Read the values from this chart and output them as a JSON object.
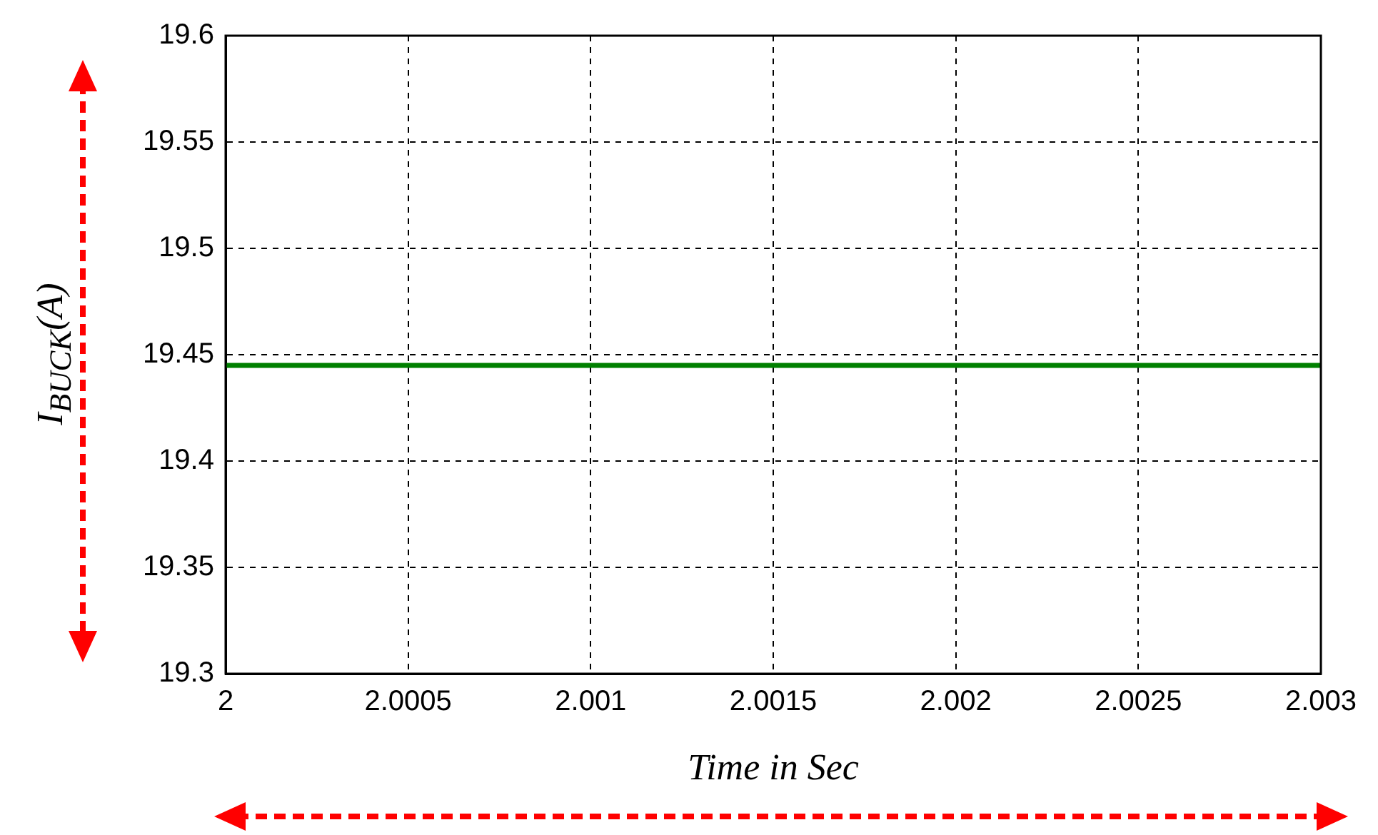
{
  "chart_data": {
    "type": "line",
    "xlabel": "Time in Sec",
    "ylabel": "I$_{BUCK}$(A)",
    "x": [
      2,
      2.003
    ],
    "series": [
      {
        "color": "#008000",
        "values": [
          19.445,
          19.445
        ]
      }
    ],
    "xlim": [
      2,
      2.003
    ],
    "xticks": [
      2,
      2.0005,
      2.001,
      2.0015,
      2.002,
      2.0025,
      2.003
    ],
    "ylim": [
      19.3,
      19.6
    ],
    "yticks": [
      19.3,
      19.35,
      19.4,
      19.45,
      19.5,
      19.55,
      19.6
    ],
    "grid": true,
    "legend": false,
    "marker": "none",
    "line_style": "solid"
  }
}
